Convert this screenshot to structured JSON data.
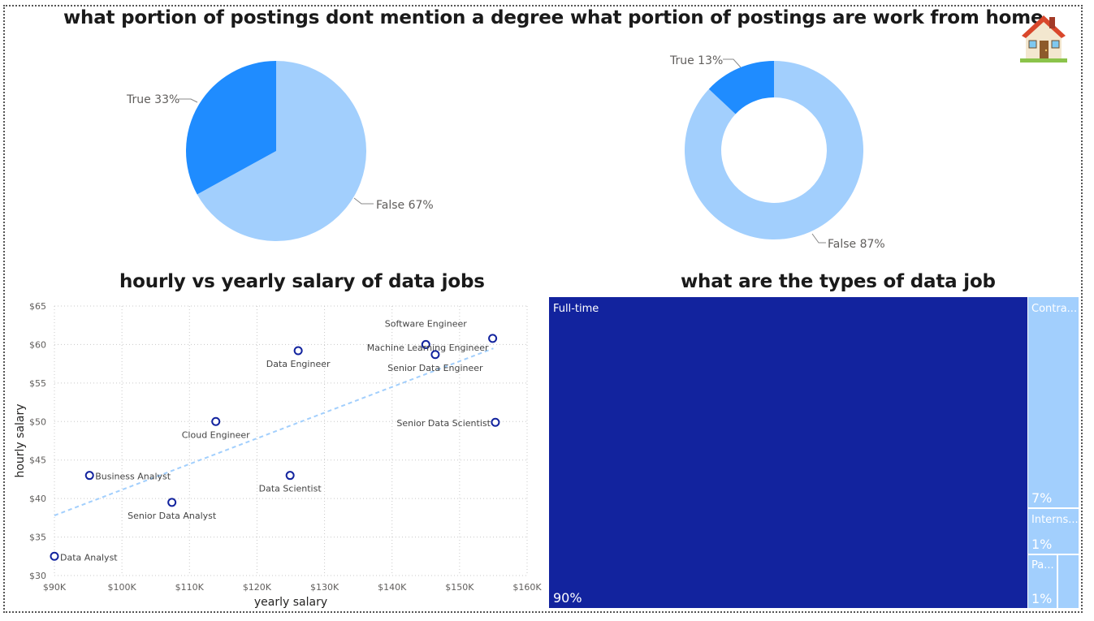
{
  "colors": {
    "dark_blue": "#1f8cff",
    "light_blue": "#a2cffd",
    "navy": "#12239e",
    "scatter_point": "#12239e",
    "trend": "#a2cffd"
  },
  "house_icon": "house-icon",
  "chart_data": [
    {
      "type": "pie",
      "title": "what portion of postings dont mention a degree",
      "slices": [
        {
          "label": "True",
          "value": 33,
          "display": "True 33%"
        },
        {
          "label": "False",
          "value": 67,
          "display": "False 67%"
        }
      ]
    },
    {
      "type": "pie",
      "variant": "donut",
      "title": "what portion of postings are work from home",
      "slices": [
        {
          "label": "True",
          "value": 13,
          "display": "True 13%"
        },
        {
          "label": "False",
          "value": 87,
          "display": "False 87%"
        }
      ]
    },
    {
      "type": "scatter",
      "title": "hourly vs yearly salary of data jobs",
      "xlabel": "yearly salary",
      "ylabel": "hourly salary",
      "xlim": [
        90000,
        160000
      ],
      "ylim": [
        30,
        65
      ],
      "x_ticks": [
        {
          "v": 90000,
          "label": "$90K"
        },
        {
          "v": 100000,
          "label": "$100K"
        },
        {
          "v": 110000,
          "label": "$110K"
        },
        {
          "v": 120000,
          "label": "$120K"
        },
        {
          "v": 130000,
          "label": "$130K"
        },
        {
          "v": 140000,
          "label": "$140K"
        },
        {
          "v": 150000,
          "label": "$150K"
        },
        {
          "v": 160000,
          "label": "$160K"
        }
      ],
      "y_ticks": [
        {
          "v": 30,
          "label": "$30"
        },
        {
          "v": 35,
          "label": "$35"
        },
        {
          "v": 40,
          "label": "$40"
        },
        {
          "v": 45,
          "label": "$45"
        },
        {
          "v": 50,
          "label": "$50"
        },
        {
          "v": 55,
          "label": "$55"
        },
        {
          "v": 60,
          "label": "$60"
        },
        {
          "v": 65,
          "label": "$65"
        }
      ],
      "grid": true,
      "points": [
        {
          "label": "Data Analyst",
          "x": 90000,
          "y": 32.5
        },
        {
          "label": "Business Analyst",
          "x": 95200,
          "y": 43
        },
        {
          "label": "Senior Data Analyst",
          "x": 107400,
          "y": 39.5
        },
        {
          "label": "Cloud Engineer",
          "x": 113900,
          "y": 50
        },
        {
          "label": "Data Scientist",
          "x": 124900,
          "y": 43
        },
        {
          "label": "Data Engineer",
          "x": 126100,
          "y": 59.2
        },
        {
          "label": "Software Engineer",
          "x": 145000,
          "y": 60
        },
        {
          "label": "Senior Data Engineer",
          "x": 146400,
          "y": 58.7
        },
        {
          "label": "Machine Learning Engineer",
          "x": 154900,
          "y": 60.8
        },
        {
          "label": "Senior Data Scientist",
          "x": 155300,
          "y": 49.9
        }
      ],
      "trend_line": {
        "x": [
          90000,
          155000
        ],
        "y": [
          37.8,
          59.5
        ]
      }
    },
    {
      "type": "treemap",
      "title": "what are the types of data job",
      "items": [
        {
          "label": "Full-time",
          "value": 90,
          "display": "90%"
        },
        {
          "label": "Contra...",
          "value": 7,
          "display": "7%"
        },
        {
          "label": "Interns...",
          "value": 1,
          "display": "1%"
        },
        {
          "label": "Pa...",
          "value": 1,
          "display": "1%"
        },
        {
          "label": "",
          "value": 0.4,
          "display": ""
        }
      ]
    }
  ]
}
